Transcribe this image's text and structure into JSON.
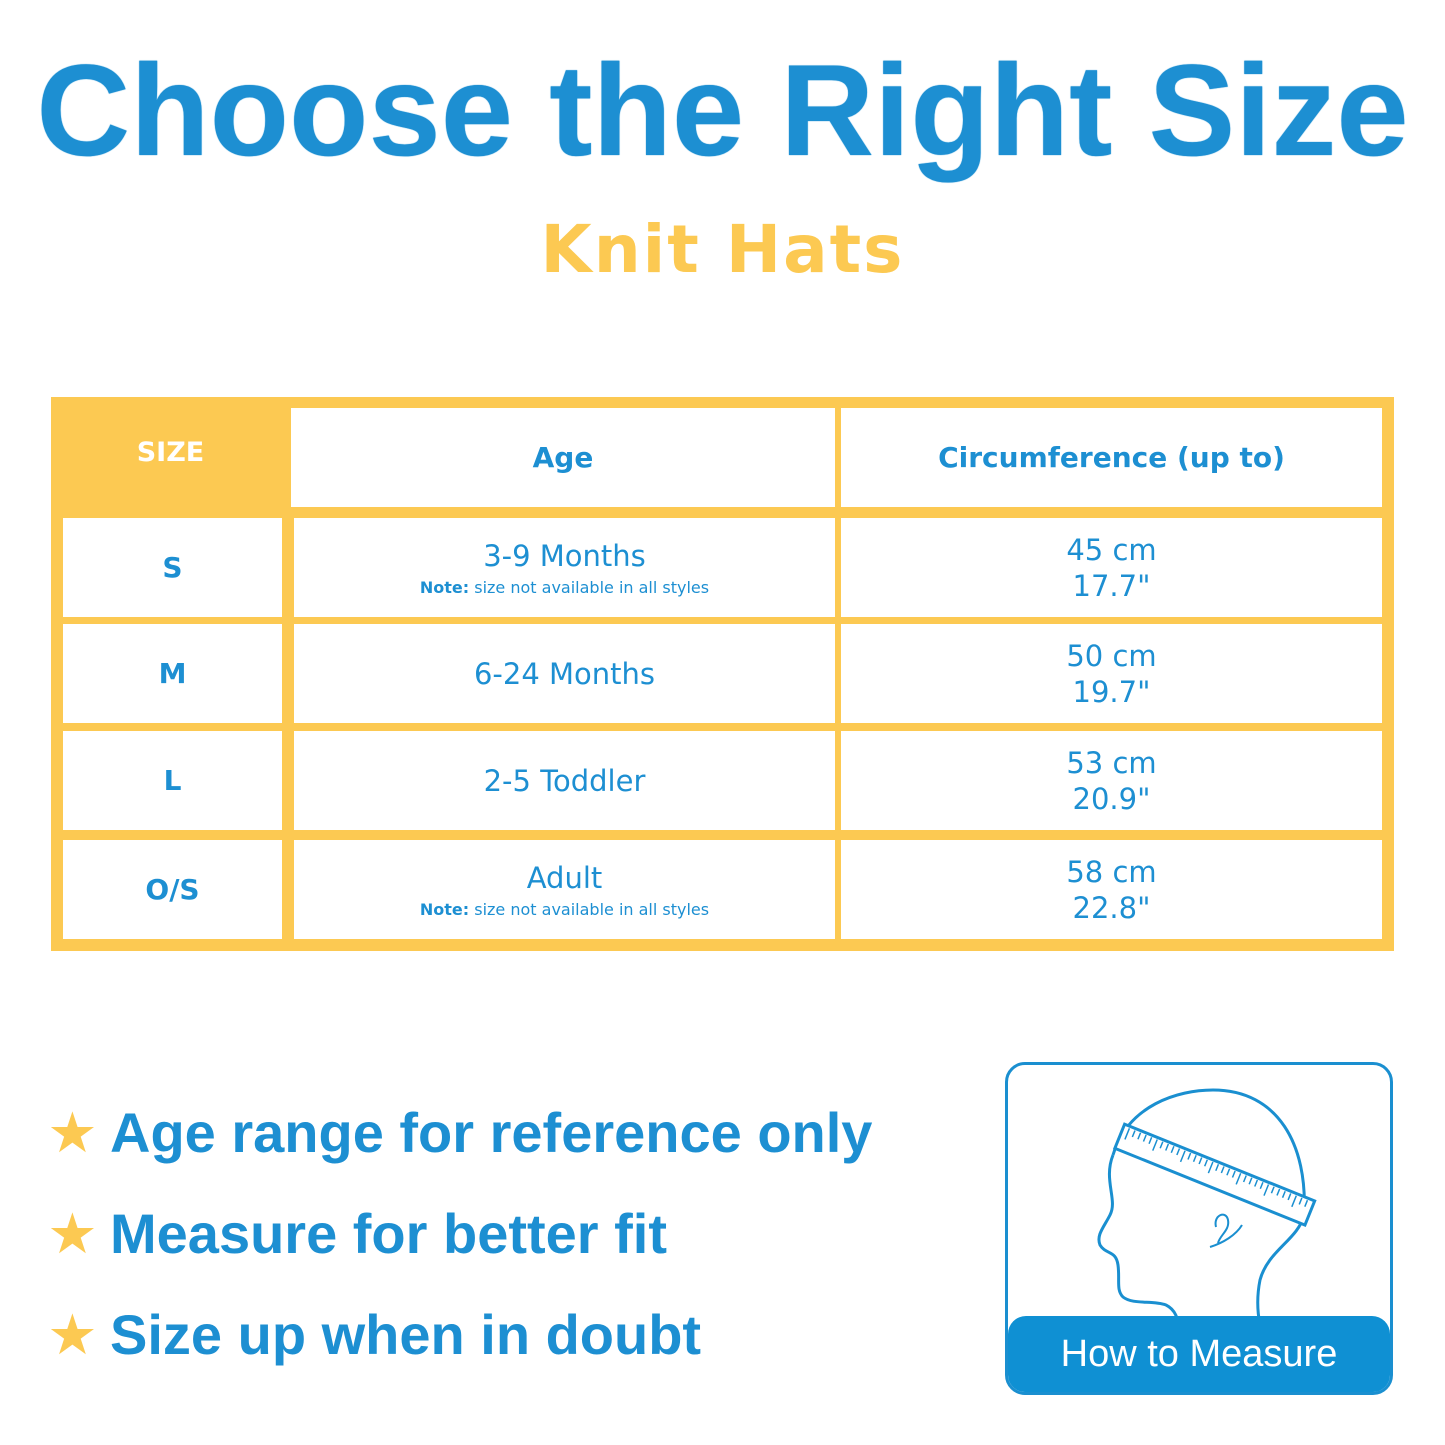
{
  "title": "Choose the Right Size",
  "subtitle": "Knit Hats",
  "colors": {
    "blue": "#1d8fd2",
    "yellow": "#fcc952"
  },
  "table": {
    "headers": [
      "SIZE",
      "Age",
      "Circumference (up to)"
    ],
    "rows": [
      {
        "size": "S",
        "age": "3-9 Months",
        "note_label": "Note:",
        "note": " size not available in all styles",
        "cm": "45 cm",
        "inch": "17.7\""
      },
      {
        "size": "M",
        "age": "6-24 Months",
        "note_label": "",
        "note": "",
        "cm": "50 cm",
        "inch": "19.7\""
      },
      {
        "size": "L",
        "age": "2-5 Toddler",
        "note_label": "",
        "note": "",
        "cm": "53 cm",
        "inch": "20.9\""
      },
      {
        "size": "O/S",
        "age": "Adult",
        "note_label": "Note:",
        "note": " size not available in all styles",
        "cm": "58 cm",
        "inch": "22.8\""
      }
    ]
  },
  "tips": [
    {
      "icon": "star-icon",
      "text": "Age range for reference only"
    },
    {
      "icon": "star-icon",
      "text": "Measure for better fit"
    },
    {
      "icon": "star-icon",
      "text": "Size up when in doubt"
    }
  ],
  "measure": {
    "icon": "head-measuring-tape-icon",
    "label": "How to Measure"
  }
}
